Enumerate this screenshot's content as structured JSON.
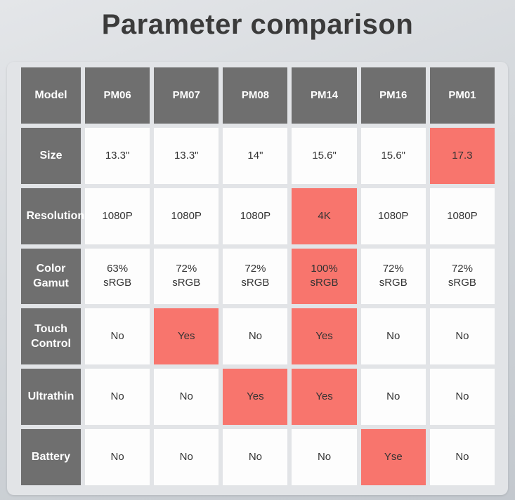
{
  "title": "Parameter comparison",
  "colors": {
    "highlight": "#f8756d",
    "header_bg": "#6f6f6f",
    "cell_bg": "#fdfdfd",
    "panel_bg": "#e2e4e7",
    "title_text": "#3b3b3b"
  },
  "chart_data": {
    "type": "table",
    "title": "Parameter comparison",
    "columns": [
      "Model",
      "PM06",
      "PM07",
      "PM08",
      "PM14",
      "PM16",
      "PM01"
    ],
    "rows": [
      [
        "Size",
        "13.3\"",
        "13.3\"",
        "14\"",
        "15.6\"",
        "15.6\"",
        "17.3"
      ],
      [
        "Resolution",
        "1080P",
        "1080P",
        "1080P",
        "4K",
        "1080P",
        "1080P"
      ],
      [
        "Color Gamut",
        "63% sRGB",
        "72% sRGB",
        "72% sRGB",
        "100% sRGB",
        "72% sRGB",
        "72% sRGB"
      ],
      [
        "Touch Control",
        "No",
        "Yes",
        "No",
        "Yes",
        "No",
        "No"
      ],
      [
        "Ultrathin",
        "No",
        "No",
        "Yes",
        "Yes",
        "No",
        "No"
      ],
      [
        "Battery",
        "No",
        "No",
        "No",
        "No",
        "Yse",
        "No"
      ]
    ],
    "highlights": [
      [
        0,
        5
      ],
      [
        1,
        3
      ],
      [
        2,
        3
      ],
      [
        3,
        1
      ],
      [
        3,
        3
      ],
      [
        4,
        2
      ],
      [
        4,
        3
      ],
      [
        5,
        4
      ]
    ],
    "legend_note": "highlights are [rowIndex, dataColumnIndex] cells shown with red background"
  }
}
